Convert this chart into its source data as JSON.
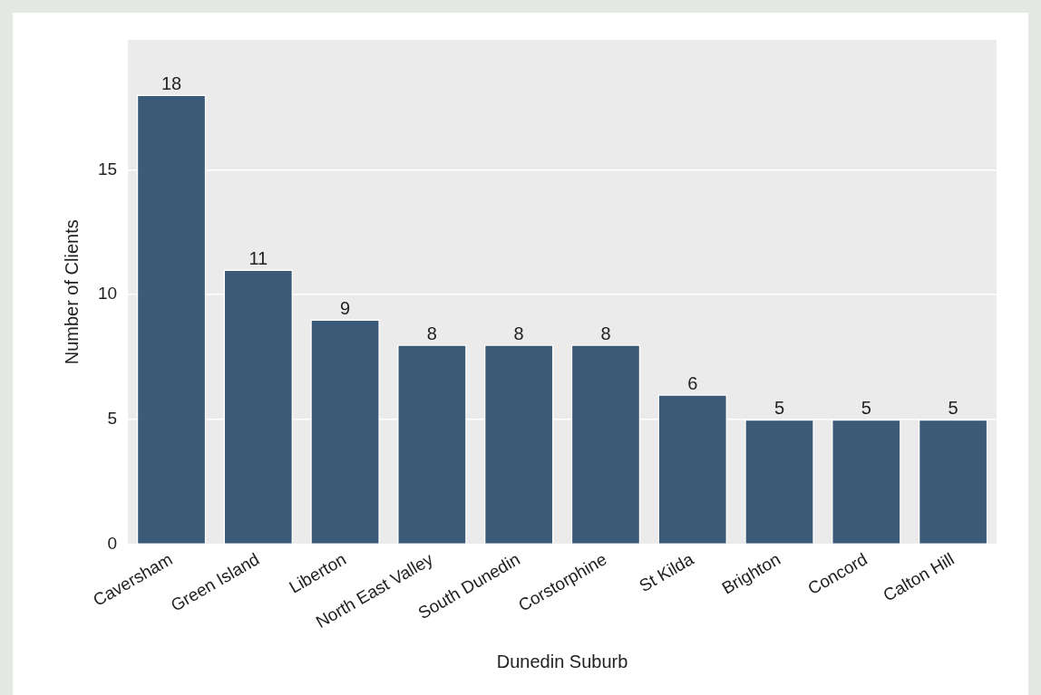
{
  "chart_data": {
    "type": "bar",
    "xlabel": "Dunedin Suburb",
    "ylabel": "Number of Clients",
    "categories": [
      "Caversham",
      "Green Island",
      "Liberton",
      "North East Valley",
      "South Dunedin",
      "Corstorphine",
      "St Kilda",
      "Brighton",
      "Concord",
      "Calton Hill"
    ],
    "values": [
      18,
      11,
      9,
      8,
      8,
      8,
      6,
      5,
      5,
      5
    ],
    "color": "#3a5a78",
    "ylim": [
      0,
      20.2
    ],
    "yticks": [
      0,
      5,
      10,
      15
    ],
    "grid": "y",
    "data_labels": true,
    "legend": false
  }
}
